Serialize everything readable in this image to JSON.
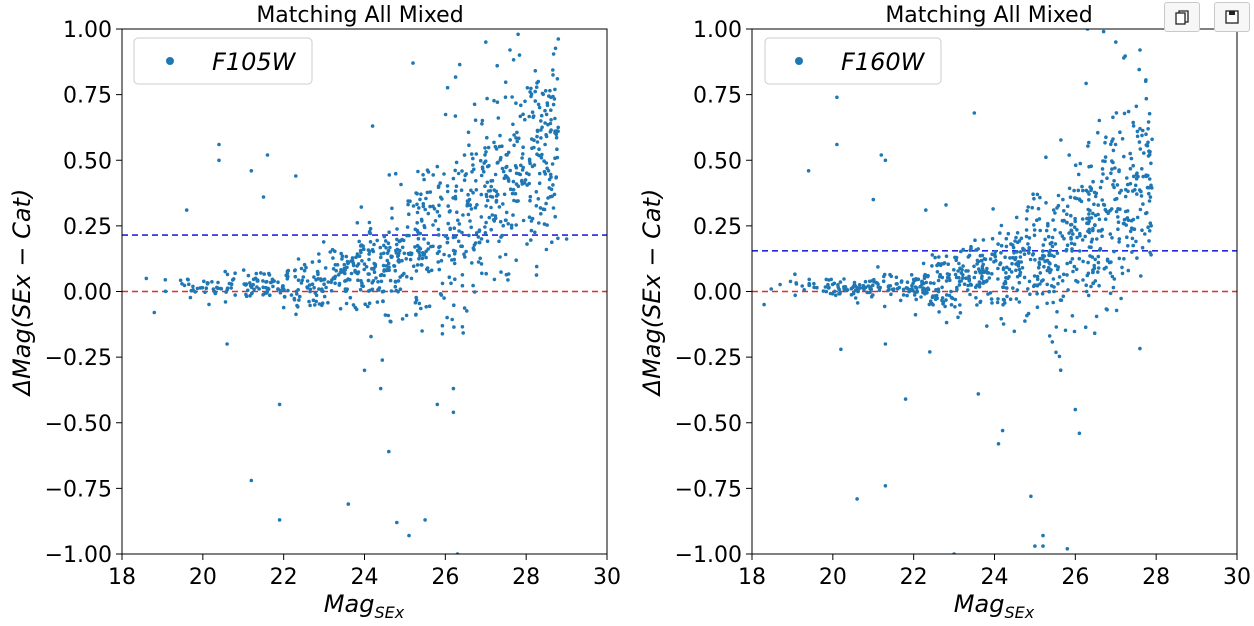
{
  "toolbar": {
    "copy_icon": "copy-icon",
    "save_icon": "save-icon"
  },
  "colors": {
    "points": "#1f77b4",
    "zero_line": "#e8282b",
    "mean_line": "#2626e0",
    "axes": "#000000"
  },
  "chart_data": [
    {
      "type": "scatter",
      "title": "Matching All Mixed",
      "xlabel_main": "Mag",
      "xlabel_sub": "SEx",
      "ylabel": "ΔMag(SEx − Cat)",
      "legend": "F105W",
      "legend_location": "upper-left",
      "xlim": [
        18,
        30
      ],
      "ylim": [
        -1.0,
        1.0
      ],
      "xticks": [
        "18",
        "20",
        "22",
        "24",
        "26",
        "28",
        "30"
      ],
      "yticks": [
        "1.00",
        "0.75",
        "0.50",
        "0.25",
        "0.00",
        "−0.25",
        "−0.50",
        "−0.75",
        "−1.00"
      ],
      "ytick_values": [
        1.0,
        0.75,
        0.5,
        0.25,
        0.0,
        -0.25,
        -0.5,
        -0.75,
        -1.0
      ],
      "xtick_values": [
        18,
        20,
        22,
        24,
        26,
        28,
        30
      ],
      "hlines": [
        {
          "y": 0.0,
          "style": "dashed",
          "color": "red"
        },
        {
          "y": 0.215,
          "style": "dashed",
          "color": "blue"
        }
      ],
      "highlighted_points": [
        [
          18.6,
          0.05
        ],
        [
          18.8,
          -0.08
        ],
        [
          19.6,
          0.31
        ],
        [
          20.4,
          0.5
        ],
        [
          20.4,
          0.56
        ],
        [
          20.6,
          -0.2
        ],
        [
          21.2,
          0.46
        ],
        [
          21.5,
          0.36
        ],
        [
          21.6,
          0.52
        ],
        [
          21.2,
          -0.72
        ],
        [
          21.9,
          -0.87
        ],
        [
          21.9,
          -0.43
        ],
        [
          22.3,
          0.44
        ],
        [
          23.6,
          -0.81
        ],
        [
          24.0,
          -0.3
        ],
        [
          24.2,
          0.63
        ],
        [
          24.4,
          -0.37
        ],
        [
          24.6,
          -0.61
        ],
        [
          24.8,
          -0.88
        ],
        [
          25.1,
          -0.93
        ],
        [
          25.5,
          -0.87
        ],
        [
          25.2,
          0.87
        ],
        [
          25.8,
          -0.43
        ],
        [
          26.2,
          -0.46
        ],
        [
          26.3,
          -1.0
        ],
        [
          26.2,
          -0.37
        ],
        [
          27.8,
          0.98
        ],
        [
          28.3,
          0.8
        ],
        [
          28.6,
          0.64
        ],
        [
          28.7,
          0.37
        ],
        [
          28.5,
          0.16
        ],
        [
          29.0,
          0.2
        ],
        [
          27.6,
          0.92
        ],
        [
          27.0,
          0.95
        ]
      ],
      "trend": {
        "bright_mag": 19.5,
        "faint_mag": 28.5,
        "comment_omitted": true
      },
      "points_estimated_count": 900,
      "xrange_points": [
        19.0,
        28.8
      ]
    },
    {
      "type": "scatter",
      "title": "Matching All Mixed",
      "xlabel_main": "Mag",
      "xlabel_sub": "SEx",
      "ylabel": "ΔMag(SEx − Cat)",
      "legend": "F160W",
      "legend_location": "upper-left",
      "xlim": [
        18,
        30
      ],
      "ylim": [
        -1.0,
        1.0
      ],
      "xticks": [
        "18",
        "20",
        "22",
        "24",
        "26",
        "28",
        "30"
      ],
      "yticks": [
        "1.00",
        "0.75",
        "0.50",
        "0.25",
        "0.00",
        "−0.25",
        "−0.50",
        "−0.75",
        "−1.00"
      ],
      "ytick_values": [
        1.0,
        0.75,
        0.5,
        0.25,
        0.0,
        -0.25,
        -0.5,
        -0.75,
        -1.0
      ],
      "xtick_values": [
        18,
        20,
        22,
        24,
        26,
        28,
        30
      ],
      "hlines": [
        {
          "y": 0.0,
          "style": "dashed",
          "color": "red"
        },
        {
          "y": 0.155,
          "style": "dashed",
          "color": "blue"
        }
      ],
      "highlighted_points": [
        [
          18.3,
          -0.05
        ],
        [
          19.4,
          0.46
        ],
        [
          20.1,
          0.74
        ],
        [
          20.1,
          0.56
        ],
        [
          20.2,
          -0.22
        ],
        [
          20.6,
          -0.79
        ],
        [
          21.0,
          0.35
        ],
        [
          21.2,
          0.52
        ],
        [
          21.3,
          0.5
        ],
        [
          21.3,
          -0.2
        ],
        [
          21.3,
          -0.74
        ],
        [
          21.8,
          -0.41
        ],
        [
          22.3,
          0.31
        ],
        [
          22.4,
          -0.23
        ],
        [
          22.8,
          0.33
        ],
        [
          23.0,
          -1.0
        ],
        [
          23.5,
          0.68
        ],
        [
          23.6,
          -0.39
        ],
        [
          24.1,
          -0.58
        ],
        [
          24.2,
          -0.53
        ],
        [
          24.9,
          -0.78
        ],
        [
          25.0,
          -0.97
        ],
        [
          25.2,
          -0.97
        ],
        [
          25.2,
          -0.93
        ],
        [
          25.8,
          -0.98
        ],
        [
          26.1,
          -0.54
        ],
        [
          26.0,
          -0.45
        ],
        [
          26.3,
          1.0
        ],
        [
          26.7,
          0.99
        ],
        [
          27.0,
          0.95
        ],
        [
          27.2,
          0.89
        ],
        [
          27.6,
          0.92
        ],
        [
          27.8,
          0.62
        ],
        [
          27.9,
          0.58
        ],
        [
          27.4,
          0.15
        ]
      ],
      "points_estimated_count": 850,
      "xrange_points": [
        18.3,
        27.9
      ]
    }
  ]
}
